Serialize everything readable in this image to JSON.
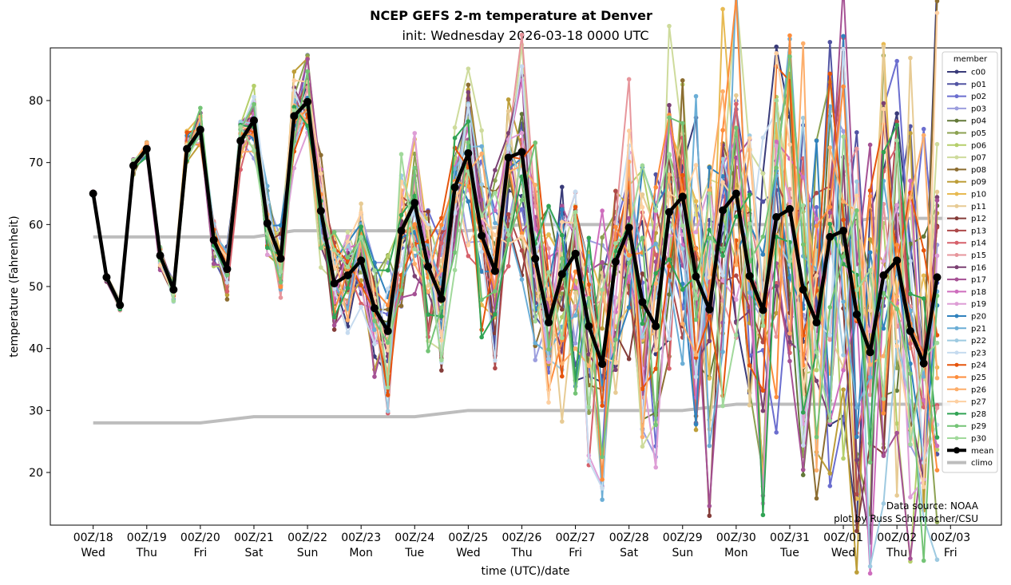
{
  "chart_data": {
    "type": "line",
    "title": "NCEP GEFS 2-m temperature at Denver",
    "subtitle": "init: Wednesday 2026-03-18 0000 UTC",
    "xlabel": "time (UTC)/date",
    "ylabel": "temperature (Fahrenheit)",
    "ylim": [
      11.5,
      88.5
    ],
    "xlim": [
      -0.8,
      16.95
    ],
    "grid": false,
    "x_ticks": [
      {
        "x": 0,
        "top": "00Z/18",
        "bottom": "Wed"
      },
      {
        "x": 1,
        "top": "00Z/19",
        "bottom": "Thu"
      },
      {
        "x": 2,
        "top": "00Z/20",
        "bottom": "Fri"
      },
      {
        "x": 3,
        "top": "00Z/21",
        "bottom": "Sat"
      },
      {
        "x": 4,
        "top": "00Z/22",
        "bottom": "Sun"
      },
      {
        "x": 5,
        "top": "00Z/23",
        "bottom": "Mon"
      },
      {
        "x": 6,
        "top": "00Z/24",
        "bottom": "Tue"
      },
      {
        "x": 7,
        "top": "00Z/25",
        "bottom": "Wed"
      },
      {
        "x": 8,
        "top": "00Z/26",
        "bottom": "Thu"
      },
      {
        "x": 9,
        "top": "00Z/27",
        "bottom": "Fri"
      },
      {
        "x": 10,
        "top": "00Z/28",
        "bottom": "Sat"
      },
      {
        "x": 11,
        "top": "00Z/29",
        "bottom": "Sun"
      },
      {
        "x": 12,
        "top": "00Z/30",
        "bottom": "Mon"
      },
      {
        "x": 13,
        "top": "00Z/31",
        "bottom": "Tue"
      },
      {
        "x": 14,
        "top": "00Z/01",
        "bottom": "Wed"
      },
      {
        "x": 15,
        "top": "00Z/02",
        "bottom": "Thu"
      },
      {
        "x": 16,
        "top": "00Z/03",
        "bottom": "Fri"
      }
    ],
    "y_ticks": [
      20,
      30,
      40,
      50,
      60,
      70,
      80
    ],
    "legend_title": "member",
    "legend_position": "top-right",
    "annotations": [
      "Data source: NOAA",
      "plot by Russ Schumacher/CSU"
    ],
    "x_step_days": 0.25,
    "members": [
      {
        "name": "c00",
        "color": "#393b79"
      },
      {
        "name": "p01",
        "color": "#5254a3"
      },
      {
        "name": "p02",
        "color": "#6b6ecf"
      },
      {
        "name": "p03",
        "color": "#9c9ede"
      },
      {
        "name": "p04",
        "color": "#637939"
      },
      {
        "name": "p05",
        "color": "#8ca252"
      },
      {
        "name": "p06",
        "color": "#b5cf6b"
      },
      {
        "name": "p07",
        "color": "#cedb9c"
      },
      {
        "name": "p08",
        "color": "#8c6d31"
      },
      {
        "name": "p09",
        "color": "#bd9e39"
      },
      {
        "name": "p10",
        "color": "#e7ba52"
      },
      {
        "name": "p11",
        "color": "#e7cb94"
      },
      {
        "name": "p12",
        "color": "#843c39"
      },
      {
        "name": "p13",
        "color": "#ad494a"
      },
      {
        "name": "p14",
        "color": "#d6616b"
      },
      {
        "name": "p15",
        "color": "#e7969c"
      },
      {
        "name": "p16",
        "color": "#7b4173"
      },
      {
        "name": "p17",
        "color": "#a55194"
      },
      {
        "name": "p18",
        "color": "#ce6dbd"
      },
      {
        "name": "p19",
        "color": "#de9ed6"
      },
      {
        "name": "p20",
        "color": "#3182bd"
      },
      {
        "name": "p21",
        "color": "#6baed6"
      },
      {
        "name": "p22",
        "color": "#9ecae1"
      },
      {
        "name": "p23",
        "color": "#c6dbef"
      },
      {
        "name": "p24",
        "color": "#e6550d"
      },
      {
        "name": "p25",
        "color": "#fd8d3c"
      },
      {
        "name": "p26",
        "color": "#fdae6b"
      },
      {
        "name": "p27",
        "color": "#fdd0a2"
      },
      {
        "name": "p28",
        "color": "#31a354"
      },
      {
        "name": "p29",
        "color": "#74c476"
      },
      {
        "name": "p30",
        "color": "#a1d99b"
      }
    ],
    "mean": {
      "name": "mean",
      "color": "#000000",
      "values": [
        65,
        51.5,
        47,
        69.5,
        72.2,
        55,
        49.5,
        72.2,
        75.3,
        57.5,
        52.8,
        73.5,
        76.8,
        60.2,
        54.5,
        77.5,
        79.8,
        62.2,
        50.5,
        51.8,
        54.2,
        46.5,
        42.8,
        59,
        63.5,
        53.2,
        48,
        66,
        71.5,
        58.2,
        52.5,
        70.8,
        71.7,
        54.5,
        44.2,
        52,
        55.3,
        43.6,
        37.5,
        54,
        59.5,
        47.5,
        43.6,
        62,
        64.5,
        51.6,
        46.3,
        62.3,
        65,
        51.7,
        46.2,
        61.2,
        62.5,
        49.5,
        44.2,
        58,
        59,
        45.5,
        39.4,
        51.8,
        54.2,
        42.8,
        37.6,
        51.5
      ]
    },
    "climo": {
      "name": "climo",
      "color": "#bdbdbd",
      "upper": [
        [
          0,
          58
        ],
        [
          3,
          58
        ],
        [
          3.75,
          59
        ],
        [
          7,
          59
        ],
        [
          8,
          60
        ],
        [
          14,
          60
        ],
        [
          14.5,
          61
        ],
        [
          16,
          61
        ]
      ],
      "lower": [
        [
          0,
          28
        ],
        [
          2,
          28
        ],
        [
          3,
          29
        ],
        [
          6,
          29
        ],
        [
          7,
          30
        ],
        [
          11,
          30
        ],
        [
          12,
          31
        ],
        [
          16,
          31
        ]
      ]
    }
  }
}
